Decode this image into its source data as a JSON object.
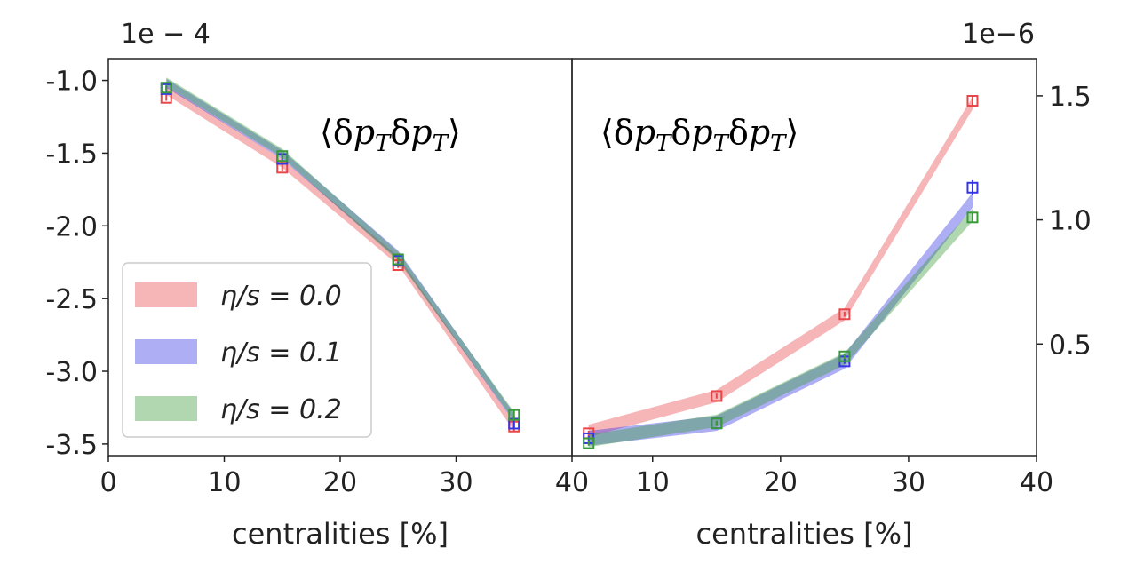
{
  "chart_data": [
    {
      "type": "line",
      "title": "⟨δp_Tδp_T⟩",
      "title_parts": [
        "⟨δ",
        "p",
        "T",
        "δ",
        "p",
        "T",
        "⟩"
      ],
      "exponent_label": "1e − 4",
      "xlabel": "centralities [%]",
      "ylabel": "",
      "xlim": [
        0,
        40
      ],
      "ylim": [
        -3.58,
        -0.85
      ],
      "xticks": [
        0,
        10,
        20,
        30,
        40
      ],
      "xtick_labels": [
        "0",
        "10",
        "20",
        "30",
        "40"
      ],
      "yticks": [
        -1.0,
        -1.5,
        -2.0,
        -2.5,
        -3.0,
        -3.5
      ],
      "ytick_labels": [
        "-1.0",
        "-1.5",
        "-2.0",
        "-2.5",
        "-3.0",
        "-3.5"
      ],
      "y_axis_side": "left",
      "x": [
        5,
        15,
        25,
        35
      ],
      "series": [
        {
          "name": "η/s = 0.0",
          "color": "#e8474a",
          "band": [
            -1.07,
            -1.57,
            -2.24,
            -3.38
          ],
          "band_halfwidth": 0.03,
          "markers": [
            -1.12,
            -1.6,
            -2.27,
            -3.38
          ],
          "errors": [
            0.02,
            0.02,
            0.02,
            0.03
          ]
        },
        {
          "name": "η/s = 0.1",
          "color": "#3535e6",
          "band": [
            -1.02,
            -1.51,
            -2.2,
            -3.32
          ],
          "band_halfwidth": 0.03,
          "markers": [
            -1.06,
            -1.54,
            -2.24,
            -3.36
          ],
          "errors": [
            0.02,
            0.02,
            0.02,
            0.03
          ]
        },
        {
          "name": "η/s = 0.2",
          "color": "#3a9a3a",
          "band": [
            -1.01,
            -1.5,
            -2.21,
            -3.31
          ],
          "band_halfwidth": 0.03,
          "markers": [
            -1.05,
            -1.52,
            -2.23,
            -3.3
          ],
          "errors": [
            0.02,
            0.02,
            0.02,
            0.03
          ]
        }
      ],
      "legend": {
        "position": "lower-left",
        "entries": [
          "η/s = 0.0",
          "η/s = 0.1",
          "η/s = 0.2"
        ]
      }
    },
    {
      "type": "line",
      "title": "⟨δp_Tδp_Tδp_T⟩",
      "title_parts": [
        "⟨δ",
        "p",
        "T",
        "δ",
        "p",
        "T",
        "δ",
        "p",
        "T",
        "⟩"
      ],
      "exponent_label": "1e−6",
      "xlabel": "centralities [%]",
      "ylabel": "",
      "xlim": [
        3.7,
        40
      ],
      "ylim": [
        0.05,
        1.65
      ],
      "xticks": [
        10,
        20,
        30,
        40
      ],
      "xtick_labels": [
        "10",
        "20",
        "30",
        "40"
      ],
      "yticks": [
        0.5,
        1.0,
        1.5
      ],
      "ytick_labels": [
        "0.5",
        "1.0",
        "1.5"
      ],
      "y_axis_side": "right",
      "x": [
        5,
        15,
        25,
        35
      ],
      "series": [
        {
          "name": "η/s = 0.0",
          "color": "#e8474a",
          "band": [
            0.15,
            0.29,
            0.62,
            1.47
          ],
          "band_halfwidth": 0.025,
          "markers": [
            0.14,
            0.29,
            0.62,
            1.48
          ],
          "errors": [
            0.01,
            0.01,
            0.01,
            0.02
          ]
        },
        {
          "name": "η/s = 0.1",
          "color": "#3535e6",
          "band": [
            0.12,
            0.18,
            0.43,
            1.08
          ],
          "band_halfwidth": 0.03,
          "markers": [
            0.12,
            0.18,
            0.43,
            1.13
          ],
          "errors": [
            0.01,
            0.01,
            0.01,
            0.03
          ]
        },
        {
          "name": "η/s = 0.2",
          "color": "#3a9a3a",
          "band": [
            0.11,
            0.19,
            0.44,
            1.02
          ],
          "band_halfwidth": 0.025,
          "markers": [
            0.1,
            0.18,
            0.45,
            1.01
          ],
          "errors": [
            0.01,
            0.01,
            0.01,
            0.02
          ]
        }
      ]
    }
  ]
}
